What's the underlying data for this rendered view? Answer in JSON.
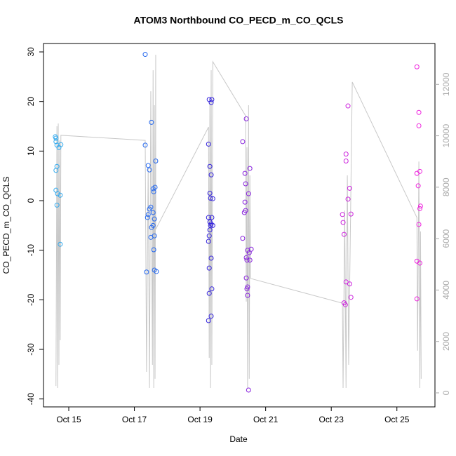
{
  "chart_data": {
    "type": "scatter",
    "title": "ATOM3 Northbound CO_PECD_m_CO_QCLS",
    "x_label": "Date",
    "y_label": "CO_PECD_m_CO_QCLS",
    "xlim": [
      14.23,
      26.16
    ],
    "ylim": [
      -41.6,
      31.7
    ],
    "y2lim": [
      -546,
      13590
    ],
    "xticks": [
      {
        "value": 15,
        "label": "Oct 15"
      },
      {
        "value": 17,
        "label": "Oct 17"
      },
      {
        "value": 19,
        "label": "Oct 19"
      },
      {
        "value": 21,
        "label": "Oct 21"
      },
      {
        "value": 23,
        "label": "Oct 23"
      },
      {
        "value": 25,
        "label": "Oct 25"
      }
    ],
    "yticks": [
      -40,
      -30,
      -20,
      -10,
      0,
      10,
      20,
      30
    ],
    "y2ticks": [
      0,
      2000,
      4000,
      6000,
      8000,
      10000,
      12000
    ],
    "series": [
      {
        "type": "line",
        "axis": "y2",
        "color": "#c8c8c8",
        "x": [
          14.61,
          14.64,
          14.66,
          14.68,
          14.7,
          14.72,
          14.74,
          14.76,
          17.33,
          17.37,
          17.42,
          17.46,
          17.5,
          17.55,
          17.57,
          17.59,
          17.61,
          17.63,
          17.65,
          17.65,
          19.26,
          19.28,
          19.3,
          19.32,
          19.34,
          19.36,
          19.39,
          20.39,
          20.41,
          20.43,
          20.45,
          20.48,
          20.5,
          20.52,
          20.54,
          23.34,
          23.36,
          23.41,
          23.45,
          23.49,
          23.53,
          23.64,
          25.61,
          25.63,
          25.67,
          25.7,
          25.72,
          25.74
        ],
        "values": [
          270,
          10370,
          190,
          10480,
          1090,
          9820,
          2050,
          10020,
          9820,
          820,
          8730,
          190,
          11730,
          1090,
          12550,
          190,
          11190,
          550,
          13150,
          6360,
          10340,
          1360,
          11460,
          190,
          12550,
          1090,
          12880,
          10780,
          3550,
          9550,
          190,
          11190,
          550,
          8460,
          4450,
          3490,
          190,
          7090,
          190,
          8460,
          1090,
          12090,
          6820,
          1640,
          9000,
          190,
          6280,
          550
        ]
      },
      {
        "type": "scatter",
        "color": "#33aaee",
        "x": [
          14.59,
          14.61,
          14.61,
          14.64,
          14.7,
          14.76,
          14.64,
          14.61,
          14.61,
          14.66,
          14.74,
          14.64,
          14.74
        ],
        "values": [
          12.9,
          12.6,
          11.9,
          11.2,
          10.7,
          11.3,
          6.9,
          6.1,
          2.1,
          1.4,
          1.1,
          -0.9,
          -8.8
        ]
      },
      {
        "type": "scatter",
        "color": "#2266ee",
        "x": [
          17.33,
          17.33,
          17.52,
          17.42,
          17.46,
          17.65,
          17.63,
          17.57,
          17.59,
          17.5,
          17.46,
          17.57,
          17.42,
          17.4,
          17.61,
          17.57,
          17.52,
          17.61,
          17.5,
          17.59,
          17.37,
          17.61,
          17.67
        ],
        "values": [
          29.5,
          11.2,
          15.8,
          7.1,
          6.2,
          8.0,
          2.7,
          2.4,
          1.8,
          -1.3,
          -1.7,
          -2.4,
          -2.8,
          -3.4,
          -3.7,
          -5.0,
          -5.4,
          -7.1,
          -7.4,
          -9.9,
          -14.4,
          -14.0,
          -14.3
        ]
      },
      {
        "type": "scatter",
        "color": "#3322dd",
        "x": [
          19.28,
          19.36,
          19.34,
          19.26,
          19.3,
          19.34,
          19.3,
          19.32,
          19.39,
          19.26,
          19.36,
          19.3,
          19.34,
          19.32,
          19.39,
          19.3,
          19.28,
          19.26,
          19.28,
          19.34,
          19.36,
          19.28,
          19.34,
          19.26
        ],
        "values": [
          20.4,
          20.4,
          19.8,
          11.4,
          6.9,
          5.2,
          1.5,
          0.5,
          0.4,
          -3.4,
          -3.4,
          -4.3,
          -4.7,
          -5.0,
          -5.0,
          -5.9,
          -7.1,
          -8.2,
          -13.6,
          -11.6,
          -17.8,
          -18.7,
          -23.3,
          -24.2
        ]
      },
      {
        "type": "scatter",
        "color": "#8822dd",
        "x": [
          20.41,
          20.3,
          20.37,
          20.52,
          20.39,
          20.48,
          20.37,
          20.39,
          20.35,
          20.3,
          20.45,
          20.56,
          20.5,
          20.41,
          20.43,
          20.52,
          20.41,
          20.45,
          20.43,
          20.45,
          20.48
        ],
        "values": [
          16.5,
          11.9,
          5.5,
          6.5,
          3.4,
          1.4,
          -0.3,
          -2.0,
          -2.4,
          -7.6,
          -10.0,
          -9.8,
          -10.5,
          -11.5,
          -12.0,
          -12.0,
          -15.6,
          -17.4,
          -17.8,
          -19.1,
          -38.2
        ]
      },
      {
        "type": "scatter",
        "color": "#cc22dd",
        "x": [
          23.51,
          23.45,
          23.45,
          23.56,
          23.51,
          23.34,
          23.6,
          23.36,
          23.39,
          23.45,
          23.56,
          23.6,
          23.39,
          23.43
        ],
        "values": [
          19.1,
          9.4,
          8.0,
          2.5,
          0.3,
          -2.8,
          -2.7,
          -4.4,
          -6.8,
          -16.4,
          -16.8,
          -19.5,
          -20.6,
          -21.0
        ]
      },
      {
        "type": "scatter",
        "color": "#ee22dd",
        "x": [
          25.61,
          25.67,
          25.67,
          25.7,
          25.61,
          25.65,
          25.72,
          25.7,
          25.67,
          25.61,
          25.7,
          25.61
        ],
        "values": [
          27.0,
          17.8,
          15.1,
          5.9,
          5.5,
          3.0,
          -1.1,
          -1.6,
          -4.8,
          -12.2,
          -12.6,
          -19.8
        ]
      }
    ]
  }
}
